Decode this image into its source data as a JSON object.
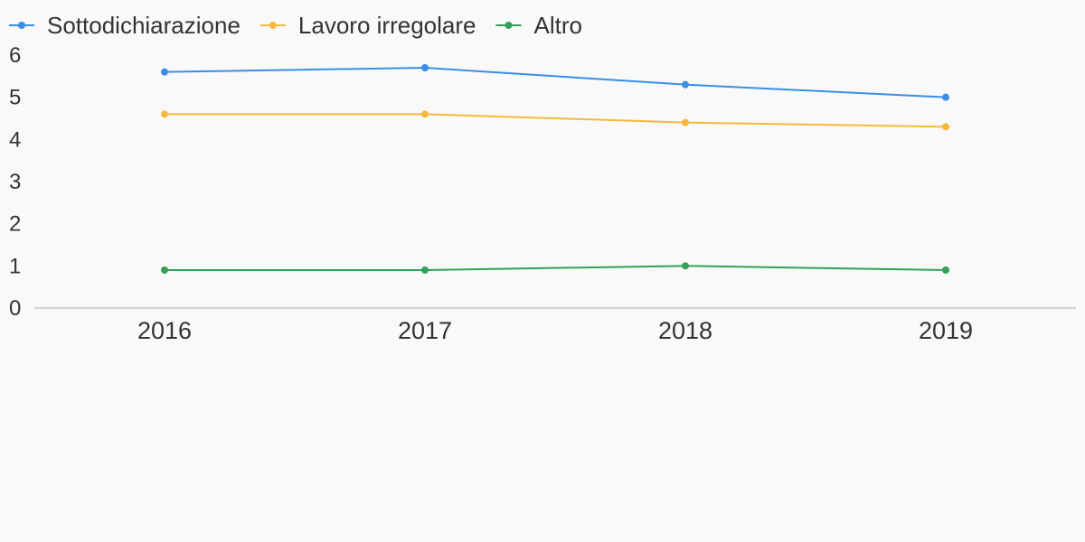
{
  "chart_data": {
    "type": "line",
    "title": "",
    "xlabel": "",
    "ylabel": "",
    "categories": [
      "2016",
      "2017",
      "2018",
      "2019"
    ],
    "ylim": [
      0,
      6
    ],
    "yticks": [
      "0",
      "1",
      "2",
      "3",
      "4",
      "5",
      "6"
    ],
    "grid": false,
    "legend_position": "top-left",
    "series": [
      {
        "name": "Sottodichiarazione",
        "color": "#3a8ee6",
        "values": [
          5.6,
          5.7,
          5.3,
          5.0
        ]
      },
      {
        "name": "Lavoro irregolare",
        "color": "#f5b83d",
        "values": [
          4.6,
          4.6,
          4.4,
          4.3
        ]
      },
      {
        "name": "Altro",
        "color": "#34a05a",
        "values": [
          0.9,
          0.9,
          1.0,
          0.9
        ]
      }
    ]
  }
}
